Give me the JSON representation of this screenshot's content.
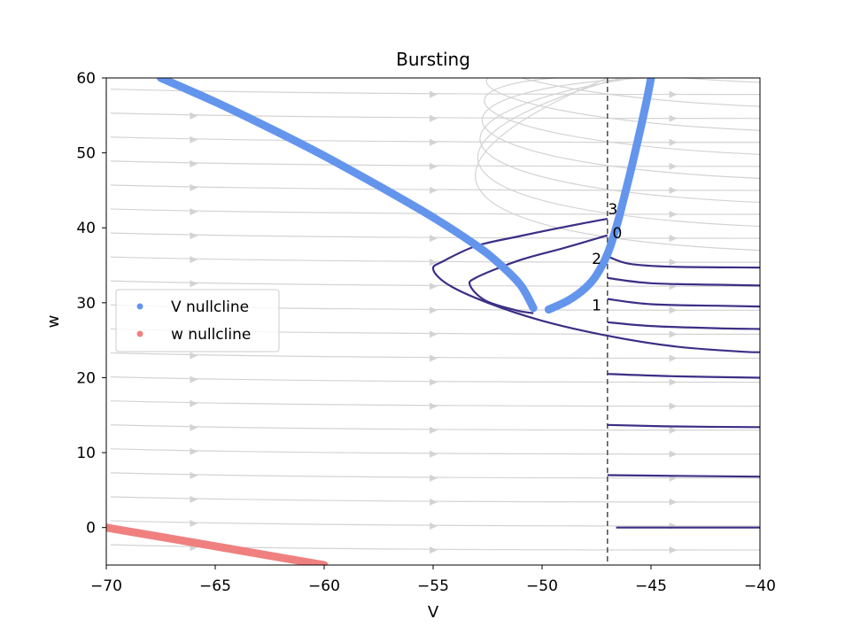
{
  "chart_data": {
    "type": "scatter",
    "title": "Bursting",
    "xlabel": "V",
    "ylabel": "w",
    "xlim": [
      -70,
      -40
    ],
    "ylim": [
      -5,
      60
    ],
    "xticks": [
      -70,
      -65,
      -60,
      -55,
      -50,
      -45,
      -40
    ],
    "yticks": [
      0,
      10,
      20,
      30,
      40,
      50,
      60
    ],
    "grid": false,
    "legend": {
      "placement": "center-left"
    },
    "series": [
      {
        "name": "V nullcline",
        "color": "#6495ed",
        "branches": [
          [
            [
              -67.5,
              60
            ],
            [
              -65,
              56.8
            ],
            [
              -62.5,
              53.3
            ],
            [
              -60,
              49.6
            ],
            [
              -57.5,
              45.6
            ],
            [
              -55,
              41.4
            ],
            [
              -53,
              37.6
            ],
            [
              -52,
              35.3
            ],
            [
              -51,
              32.4
            ],
            [
              -50.4,
              29.3
            ]
          ],
          [
            [
              -49.7,
              29.1
            ],
            [
              -48.8,
              30.3
            ],
            [
              -48,
              32
            ],
            [
              -47.5,
              33.7
            ],
            [
              -47,
              36.5
            ],
            [
              -46.6,
              40
            ],
            [
              -46.3,
              43.3
            ],
            [
              -45.9,
              48
            ],
            [
              -45.5,
              53
            ],
            [
              -45.2,
              57
            ],
            [
              -45.0,
              60
            ]
          ]
        ]
      },
      {
        "name": "w nullcline",
        "color": "#f08080",
        "branches": [
          [
            [
              -70,
              0
            ],
            [
              -65,
              -2.5
            ],
            [
              -60,
              -5
            ]
          ]
        ]
      }
    ],
    "reset_line": {
      "x": -47,
      "style": "dashed",
      "color": "#555555"
    },
    "trajectories": {
      "color": "#3b2f85",
      "curves": [
        [
          [
            -47.0,
            41.2
          ],
          [
            -49.0,
            40.1
          ],
          [
            -51.0,
            38.9
          ],
          [
            -53.0,
            37.6
          ],
          [
            -54.5,
            35.6
          ],
          [
            -55.0,
            34.5
          ],
          [
            -54.3,
            32.4
          ],
          [
            -52.5,
            30.0
          ],
          [
            -50.0,
            27.6
          ],
          [
            -47.0,
            25.6
          ],
          [
            -44.0,
            24.2
          ],
          [
            -41.0,
            23.5
          ],
          [
            -40.0,
            23.4
          ]
        ],
        [
          [
            -47.0,
            39.0
          ],
          [
            -49.0,
            37.3
          ],
          [
            -51.0,
            35.7
          ],
          [
            -53.0,
            33.4
          ],
          [
            -53.3,
            32.3
          ],
          [
            -52.6,
            30.3
          ],
          [
            -51.2,
            29.0
          ],
          [
            -50.4,
            28.6
          ]
        ],
        [
          [
            -47.0,
            36.2
          ],
          [
            -46.0,
            35.2
          ],
          [
            -44.0,
            34.8
          ],
          [
            -40.0,
            34.7
          ]
        ],
        [
          [
            -47.0,
            33.3
          ],
          [
            -45.0,
            32.6
          ],
          [
            -42.0,
            32.4
          ],
          [
            -40.0,
            32.3
          ]
        ],
        [
          [
            -47.0,
            30.5
          ],
          [
            -45.0,
            29.8
          ],
          [
            -42.0,
            29.6
          ],
          [
            -40.0,
            29.5
          ]
        ],
        [
          [
            -47.0,
            27.4
          ],
          [
            -45.0,
            26.9
          ],
          [
            -42.0,
            26.6
          ],
          [
            -40.0,
            26.5
          ]
        ],
        [
          [
            -47.0,
            20.5
          ],
          [
            -44.0,
            20.2
          ],
          [
            -40.0,
            20.0
          ]
        ],
        [
          [
            -47.0,
            13.7
          ],
          [
            -44.0,
            13.5
          ],
          [
            -40.0,
            13.4
          ]
        ],
        [
          [
            -47.0,
            7.0
          ],
          [
            -44.0,
            6.9
          ],
          [
            -40.0,
            6.8
          ]
        ],
        [
          [
            -46.6,
            0.0
          ],
          [
            -44.0,
            0.0
          ],
          [
            -40.0,
            0.0
          ]
        ]
      ]
    },
    "annotations": [
      {
        "text": "3",
        "x": -46.75,
        "y": 42.5
      },
      {
        "text": "0",
        "x": -46.55,
        "y": 39.3
      },
      {
        "text": "2",
        "x": -47.5,
        "y": 35.9
      },
      {
        "text": "1",
        "x": -47.5,
        "y": 29.7
      }
    ]
  }
}
